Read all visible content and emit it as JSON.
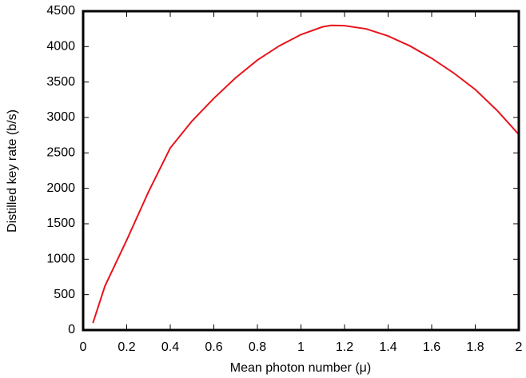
{
  "chart_data": {
    "type": "line",
    "x_label": "Mean photon number (μ)",
    "y_label": "Distilled key rate (b/s)",
    "x": [
      0.045,
      0.1,
      0.2,
      0.3,
      0.4,
      0.5,
      0.6,
      0.7,
      0.8,
      0.9,
      1.0,
      1.1,
      1.14,
      1.2,
      1.3,
      1.4,
      1.5,
      1.6,
      1.7,
      1.8,
      1.9,
      2.0
    ],
    "series": [
      {
        "name": "Distilled key rate",
        "color": "#e8141c",
        "values": [
          100,
          620,
          1270,
          1950,
          2570,
          2950,
          3270,
          3560,
          3810,
          4010,
          4170,
          4280,
          4300,
          4295,
          4250,
          4150,
          4010,
          3835,
          3630,
          3395,
          3100,
          2760
        ]
      }
    ],
    "xlim": [
      0,
      2
    ],
    "xticks": [
      0,
      0.2,
      0.4,
      0.6,
      0.8,
      1,
      1.2,
      1.4,
      1.6,
      1.8,
      2
    ],
    "ylim": [
      0,
      4500
    ],
    "yticks": [
      0,
      500,
      1000,
      1500,
      2000,
      2500,
      3000,
      3500,
      4000,
      4500
    ],
    "grid": false
  }
}
